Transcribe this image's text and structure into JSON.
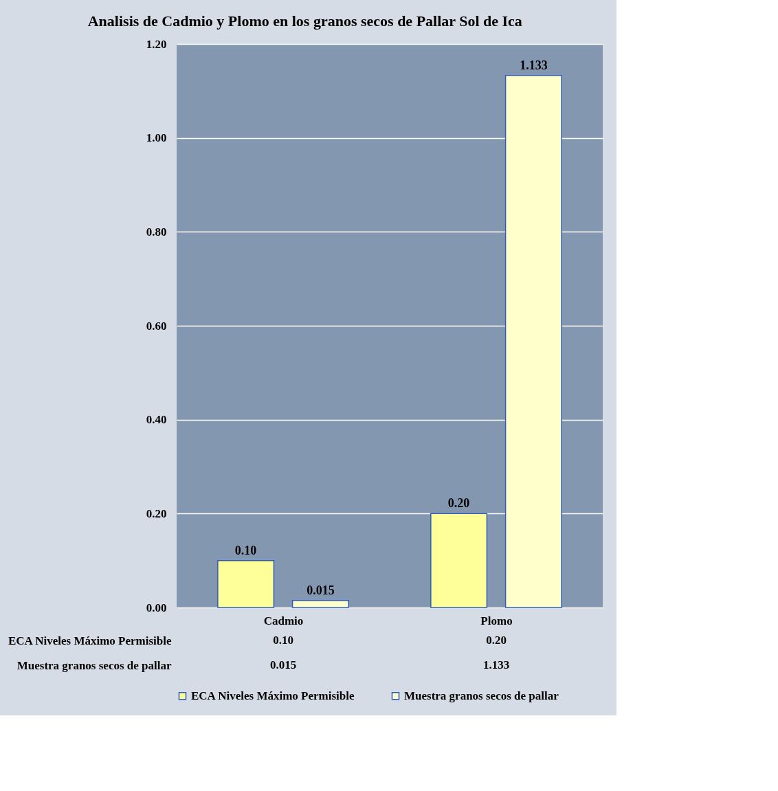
{
  "chart_data": {
    "type": "bar",
    "title": "Analisis  de Cadmio y Plomo en los granos secos de Pallar Sol de Ica",
    "categories": [
      "Cadmio",
      "Plomo"
    ],
    "series": [
      {
        "name": "ECA Niveles Máximo Permisible",
        "color": "#ffff99",
        "values": [
          0.1,
          0.2
        ],
        "value_labels": [
          "0.10",
          "0.20"
        ]
      },
      {
        "name": "Muestra granos secos de pallar",
        "color": "#ffffcc",
        "values": [
          0.015,
          1.133
        ],
        "value_labels": [
          "0.015",
          "1.133"
        ]
      }
    ],
    "ylim": [
      0,
      1.2
    ],
    "yticks": [
      {
        "value": 0,
        "label": "0.00"
      },
      {
        "value": 0.2,
        "label": "0.20"
      },
      {
        "value": 0.4,
        "label": "0.40"
      },
      {
        "value": 0.6,
        "label": "0.60"
      },
      {
        "value": 0.8,
        "label": "0.80"
      },
      {
        "value": 1.0,
        "label": "1.00"
      },
      {
        "value": 1.2,
        "label": "1.20"
      }
    ],
    "grid": "y",
    "legend": "bottom"
  }
}
